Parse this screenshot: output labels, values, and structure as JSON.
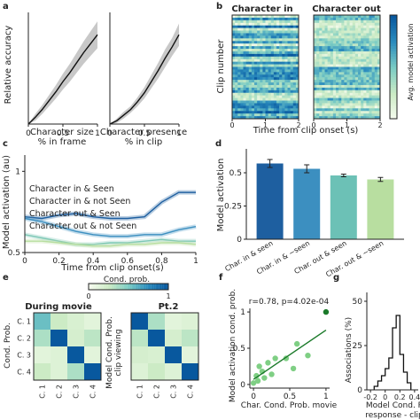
{
  "panels": {
    "a": {
      "letter": "a",
      "ylabel": "Relative accuracy",
      "plots": [
        {
          "xlabel_l1": "Character size",
          "xlabel_l2": "% in frame",
          "xticks": [
            "0",
            "0.5",
            "1"
          ]
        },
        {
          "xlabel_l1": "Character presence",
          "xlabel_l2": "% in clip",
          "xticks": [
            "0",
            "0.5",
            "1"
          ]
        }
      ]
    },
    "b": {
      "letter": "b",
      "titles": [
        "Character in",
        "Character out"
      ],
      "ylabel": "Clip number",
      "xlabel": "Time from clip onset (s)",
      "xticks": [
        "0",
        "1",
        "2",
        "0",
        "1",
        "2"
      ],
      "colorbar_label": "Avg. model activation"
    },
    "c": {
      "letter": "c",
      "ylabel": "Model activation (au)",
      "xlabel": "Time from clip onset(s)",
      "yticks": [
        "0.5",
        "1"
      ],
      "xticks": [
        "0",
        "0.2",
        "0.4",
        "0.6",
        "0.8",
        "1"
      ]
    },
    "d": {
      "letter": "d",
      "ylabel": "Model activation",
      "yticks": [
        "0",
        "0.25",
        "0.5"
      ],
      "xticks": [
        "Char. in & seen",
        "Char. in & ~seen",
        "Char. out & seen",
        "Char. out & ~seen"
      ]
    },
    "e": {
      "letter": "e",
      "cbar_title": "Cond. prob.",
      "cbar_ticks": [
        "0",
        "1"
      ],
      "titles": [
        "During movie",
        "Pt.2"
      ],
      "ylabel_l1": "Cond. Prob.",
      "ylabel_right_l1": "Model Cond. Prob.",
      "ylabel_right_l2": "clip viewing",
      "rowlabels": [
        "C. 1",
        "C. 2",
        "C. 3",
        "C. 4"
      ],
      "collabels": [
        "C. 1",
        "C. 2",
        "C. 3",
        "C. 4"
      ]
    },
    "f": {
      "letter": "f",
      "annotation": "r=0.78, p=4.02e-04",
      "ylabel": "Model activation cond. prob.",
      "xlabel": "Char. Cond. Prob. movie",
      "ticks": [
        "0",
        "0.5",
        "1"
      ]
    },
    "g": {
      "letter": "g",
      "ylabel": "Associations (%)",
      "yticks": [
        "0",
        "25",
        "50"
      ],
      "xticks": [
        "-0.2",
        "0",
        "0.2",
        "0.4"
      ],
      "xlabel_l1": "Model Cond. P",
      "xlabel_l2": "response - clip"
    }
  },
  "chart_data": [
    {
      "panel": "a1",
      "type": "line",
      "x": [
        0,
        0.1,
        0.2,
        0.3,
        0.4,
        0.5,
        0.6,
        0.7,
        0.8,
        0.9,
        1
      ],
      "series": [
        {
          "values": [
            1.0,
            1.06,
            1.13,
            1.21,
            1.29,
            1.38,
            1.46,
            1.55,
            1.64,
            1.72,
            1.8
          ],
          "lower": [
            1.0,
            1.03,
            1.09,
            1.16,
            1.23,
            1.31,
            1.38,
            1.46,
            1.54,
            1.61,
            1.68
          ],
          "upper": [
            1.0,
            1.09,
            1.17,
            1.26,
            1.35,
            1.45,
            1.54,
            1.64,
            1.74,
            1.83,
            1.92
          ]
        }
      ],
      "xlim": [
        0,
        1
      ],
      "ylim": [
        1,
        2
      ]
    },
    {
      "panel": "a2",
      "type": "line",
      "x": [
        0,
        0.1,
        0.2,
        0.3,
        0.4,
        0.5,
        0.6,
        0.7,
        0.8,
        0.9,
        1
      ],
      "series": [
        {
          "values": [
            1.0,
            1.03,
            1.08,
            1.13,
            1.2,
            1.28,
            1.38,
            1.48,
            1.59,
            1.69,
            1.8
          ],
          "lower": [
            1.0,
            1.01,
            1.05,
            1.1,
            1.16,
            1.23,
            1.32,
            1.41,
            1.51,
            1.61,
            1.7
          ],
          "upper": [
            1.0,
            1.05,
            1.11,
            1.16,
            1.24,
            1.33,
            1.44,
            1.55,
            1.67,
            1.77,
            1.9
          ]
        }
      ],
      "xlim": [
        0,
        1
      ],
      "ylim": [
        1,
        2
      ]
    },
    {
      "panel": "b",
      "type": "heatmap",
      "rows": 40,
      "cols": 24,
      "xlim": [
        0,
        2
      ],
      "note": "clips x time, avg. model activation",
      "cmap": "GnBu"
    },
    {
      "panel": "c",
      "type": "line",
      "x": [
        0,
        0.1,
        0.2,
        0.3,
        0.4,
        0.5,
        0.6,
        0.7,
        0.8,
        0.9,
        1.0
      ],
      "ylim": [
        0.5,
        1.1
      ],
      "series": [
        {
          "name": "Character in & Seen",
          "color": "#1e5fa0",
          "values": [
            0.72,
            0.71,
            0.73,
            0.74,
            0.72,
            0.71,
            0.71,
            0.72,
            0.81,
            0.87,
            0.87
          ]
        },
        {
          "name": "Character in & not Seen",
          "color": "#3c8fc0",
          "values": [
            0.71,
            0.69,
            0.66,
            0.63,
            0.61,
            0.6,
            0.6,
            0.61,
            0.61,
            0.64,
            0.66
          ]
        },
        {
          "name": "Character out & Seen",
          "color": "#7ec8b6",
          "values": [
            0.61,
            0.59,
            0.57,
            0.55,
            0.55,
            0.56,
            0.56,
            0.57,
            0.58,
            0.57,
            0.57
          ]
        },
        {
          "name": "Character out & not Seen",
          "color": "#b8dea0",
          "values": [
            0.57,
            0.57,
            0.56,
            0.55,
            0.54,
            0.54,
            0.55,
            0.55,
            0.56,
            0.56,
            0.55
          ]
        }
      ]
    },
    {
      "panel": "d",
      "type": "bar",
      "categories": [
        "Char. in & seen",
        "Char. in & ~seen",
        "Char. out & seen",
        "Char. out & ~seen"
      ],
      "values": [
        0.57,
        0.53,
        0.48,
        0.45
      ],
      "errors": [
        0.03,
        0.03,
        0.01,
        0.015
      ],
      "colors": [
        "#1e5fa0",
        "#3c8fc0",
        "#6cc1b6",
        "#b8dea0"
      ],
      "ylim": [
        0,
        0.68
      ]
    },
    {
      "panel": "e1",
      "type": "heatmap",
      "values": [
        [
          0.55,
          0.25,
          0.18,
          0.12
        ],
        [
          0.35,
          1.0,
          0.2,
          0.3
        ],
        [
          0.12,
          0.15,
          1.0,
          0.12
        ],
        [
          0.25,
          0.15,
          0.35,
          1.0
        ]
      ]
    },
    {
      "panel": "e2",
      "type": "heatmap",
      "values": [
        [
          1.0,
          0.35,
          0.12,
          0.15
        ],
        [
          0.3,
          1.0,
          0.2,
          0.3
        ],
        [
          0.2,
          0.18,
          1.0,
          0.12
        ],
        [
          0.15,
          0.25,
          0.15,
          1.0
        ]
      ]
    },
    {
      "panel": "f",
      "type": "scatter",
      "x": [
        0,
        0.04,
        0.06,
        0.08,
        0.12,
        0.15,
        0.2,
        0.25,
        0.3,
        0.45,
        0.55,
        0.6,
        0.75,
        1.0
      ],
      "y": [
        0.02,
        0.12,
        0.05,
        0.25,
        0.18,
        0.09,
        0.3,
        0.14,
        0.36,
        0.36,
        0.22,
        0.56,
        0.4,
        1.0
      ],
      "fit": [
        [
          0,
          0.07
        ],
        [
          1,
          0.75
        ]
      ],
      "xlim": [
        -0.05,
        1.05
      ],
      "ylim": [
        -0.05,
        1.05
      ]
    },
    {
      "panel": "g",
      "type": "histogram",
      "bin_edges": [
        -0.15,
        -0.1,
        -0.05,
        0,
        0.05,
        0.1,
        0.15,
        0.2,
        0.25,
        0.3,
        0.35
      ],
      "values": [
        2,
        5,
        8,
        12,
        18,
        35,
        42,
        20,
        10,
        4
      ],
      "ylim": [
        0,
        55
      ],
      "xlim": [
        -0.25,
        0.45
      ]
    }
  ]
}
